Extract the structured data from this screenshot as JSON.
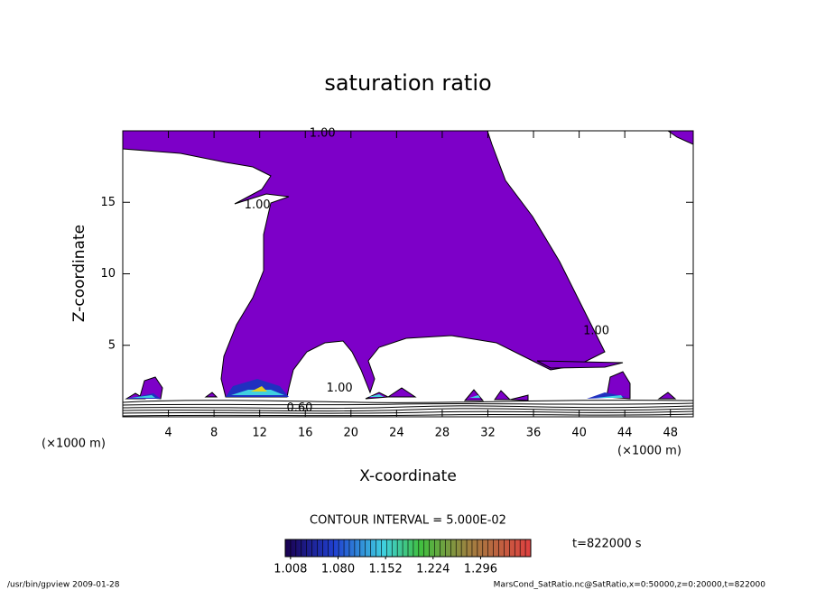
{
  "chart_data": {
    "type": "contour",
    "title": "saturation ratio",
    "xlabel": "X-coordinate",
    "ylabel": "Z-coordinate",
    "x_unit": "(×1000 m)",
    "xlim": [
      0,
      50
    ],
    "ylim": [
      0,
      20
    ],
    "xticks": [
      4,
      8,
      12,
      16,
      20,
      24,
      28,
      32,
      36,
      40,
      44,
      48
    ],
    "yticks": [
      5,
      10,
      15
    ],
    "fill_color": "#7d00c8",
    "annotations": [
      {
        "text": "1.00",
        "x": 17.5,
        "y": 19.8
      },
      {
        "text": "1.00",
        "x": 11.8,
        "y": 14.8
      },
      {
        "text": "1.00",
        "x": 41.5,
        "y": 6
      },
      {
        "text": "1.00",
        "x": 19,
        "y": 2
      },
      {
        "text": "0.60",
        "x": 15.5,
        "y": 0.6
      }
    ],
    "contour_interval": "CONTOUR INTERVAL = 5.000E-02",
    "time_label": "t=822000 s",
    "clim": [
      1.0,
      1.372
    ],
    "cticks": [
      1.008,
      {
        "value": 1.08,
        "label": "1.080"
      },
      1.152,
      1.224,
      1.296
    ],
    "footer_left": "/usr/bin/gpview   2009-01-28",
    "footer_right": "MarsCond_SatRatio.nc@SatRatio,x=0:50000,z=0:20000,t=822000"
  }
}
